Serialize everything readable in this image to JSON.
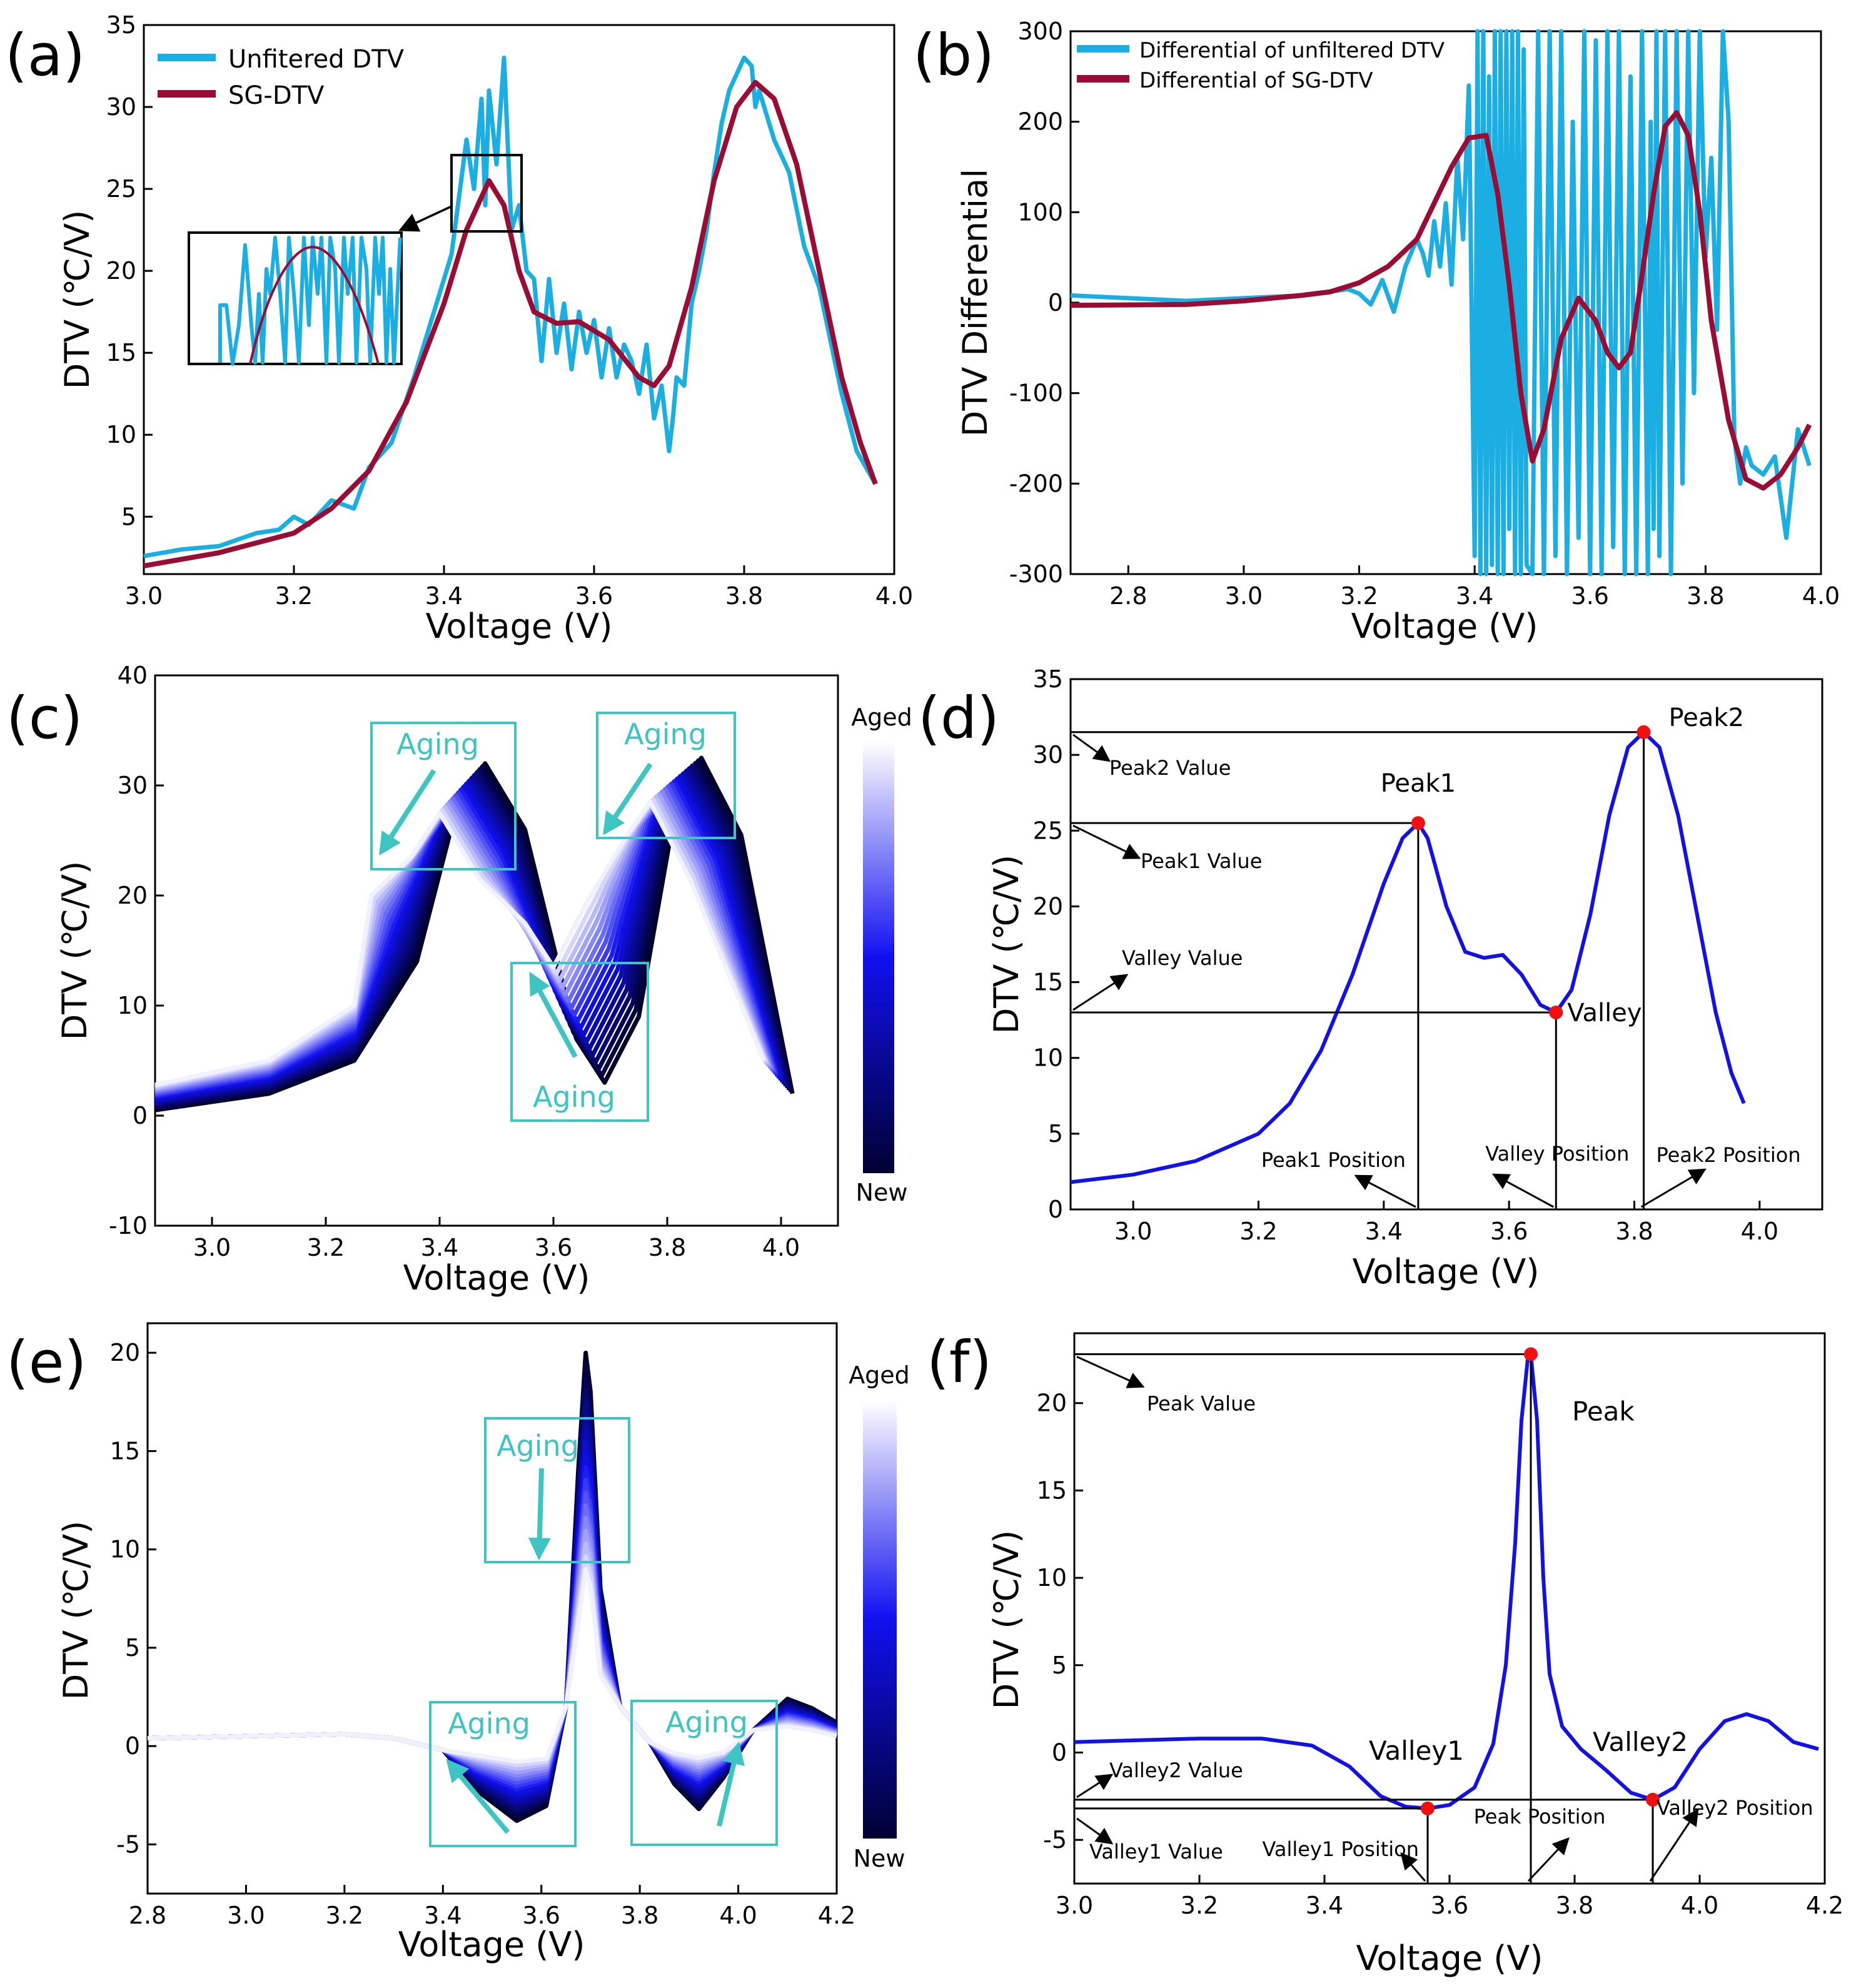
{
  "colors": {
    "unfiltered": "#1aaee3",
    "sg": "#9a0c34",
    "blue_curve": "#1212e6",
    "marker": "#f01010",
    "aging": "#3fc4c4",
    "axis": "#000000"
  },
  "chart_data": [
    {
      "id": "a",
      "panel_label": "(a)",
      "type": "line",
      "xlabel": "Voltage (V)",
      "ylabel": "DTV (℃/V)",
      "xlim": [
        3.0,
        4.0
      ],
      "ylim": [
        1.5,
        35
      ],
      "xticks": [
        3.0,
        3.2,
        3.4,
        3.6,
        3.8,
        4.0
      ],
      "xtick_labels": [
        "3.0",
        "3.2",
        "3.4",
        "3.6",
        "3.8",
        "4.0"
      ],
      "yticks": [
        5,
        10,
        15,
        20,
        25,
        30,
        35
      ],
      "ytick_labels": [
        "5",
        "10",
        "15",
        "20",
        "25",
        "30",
        "35"
      ],
      "legend": [
        "Unfitered DTV",
        "SG-DTV"
      ],
      "legend_position": "top-left",
      "series": [
        {
          "name": "SG-DTV",
          "x": [
            3.0,
            3.1,
            3.2,
            3.25,
            3.3,
            3.35,
            3.4,
            3.43,
            3.46,
            3.48,
            3.5,
            3.52,
            3.55,
            3.58,
            3.62,
            3.66,
            3.68,
            3.7,
            3.73,
            3.76,
            3.79,
            3.815,
            3.84,
            3.87,
            3.9,
            3.93,
            3.955,
            3.975
          ],
          "y": [
            2.0,
            2.8,
            4.0,
            5.5,
            7.8,
            12.0,
            18.0,
            22.5,
            25.5,
            24.0,
            20.0,
            17.5,
            16.8,
            16.9,
            15.8,
            13.5,
            13.0,
            14.2,
            19.0,
            25.5,
            30.0,
            31.5,
            30.5,
            26.5,
            20.0,
            13.5,
            9.5,
            7.0
          ]
        },
        {
          "name": "Unfitered DTV",
          "x": [
            3.0,
            3.05,
            3.1,
            3.15,
            3.18,
            3.2,
            3.22,
            3.25,
            3.28,
            3.3,
            3.33,
            3.36,
            3.39,
            3.41,
            3.42,
            3.43,
            3.44,
            3.45,
            3.455,
            3.46,
            3.47,
            3.48,
            3.49,
            3.5,
            3.51,
            3.52,
            3.53,
            3.54,
            3.55,
            3.56,
            3.57,
            3.58,
            3.59,
            3.6,
            3.61,
            3.62,
            3.63,
            3.64,
            3.65,
            3.66,
            3.67,
            3.68,
            3.69,
            3.7,
            3.705,
            3.71,
            3.72,
            3.73,
            3.74,
            3.75,
            3.76,
            3.77,
            3.78,
            3.79,
            3.8,
            3.81,
            3.815,
            3.82,
            3.83,
            3.84,
            3.86,
            3.88,
            3.9,
            3.93,
            3.95,
            3.975
          ],
          "y": [
            2.6,
            3.0,
            3.2,
            4.0,
            4.2,
            5.0,
            4.5,
            6.0,
            5.5,
            8.0,
            9.5,
            13.5,
            18.0,
            21.0,
            24.5,
            28.0,
            25.0,
            30.5,
            24.0,
            31.0,
            26.5,
            33.0,
            22.5,
            24.0,
            20.0,
            19.5,
            14.5,
            19.5,
            15.0,
            18.0,
            14.0,
            17.5,
            15.0,
            17.0,
            13.5,
            16.5,
            13.5,
            15.5,
            14.5,
            12.5,
            15.5,
            11.0,
            13.0,
            9.0,
            11.0,
            13.5,
            13.0,
            18.0,
            20.0,
            22.5,
            26.0,
            29.0,
            31.0,
            32.0,
            33.0,
            32.5,
            30.0,
            31.0,
            29.5,
            28.0,
            26.0,
            21.5,
            19.0,
            12.5,
            9.0,
            7.0
          ]
        }
      ]
    },
    {
      "id": "b",
      "panel_label": "(b)",
      "type": "line",
      "xlabel": "Voltage (V)",
      "ylabel": "DTV Differential",
      "xlim": [
        2.7,
        4.0
      ],
      "ylim": [
        -300,
        300
      ],
      "xticks": [
        2.8,
        3.0,
        3.2,
        3.4,
        3.6,
        3.8,
        4.0
      ],
      "xtick_labels": [
        "2.8",
        "3.0",
        "3.2",
        "3.4",
        "3.6",
        "3.8",
        "4.0"
      ],
      "yticks": [
        -300,
        -200,
        -100,
        0,
        100,
        200,
        300
      ],
      "ytick_labels": [
        "-300",
        "-200",
        "-100",
        "0",
        "100",
        "200",
        "300"
      ],
      "legend": [
        "Differential of unfiltered DTV",
        "Differential of SG-DTV"
      ],
      "legend_position": "top-left",
      "series": [
        {
          "name": "Differential of SG-DTV",
          "x": [
            2.7,
            2.9,
            3.0,
            3.1,
            3.15,
            3.2,
            3.25,
            3.3,
            3.33,
            3.36,
            3.39,
            3.42,
            3.44,
            3.46,
            3.48,
            3.5,
            3.52,
            3.55,
            3.58,
            3.61,
            3.63,
            3.65,
            3.67,
            3.69,
            3.71,
            3.73,
            3.75,
            3.77,
            3.79,
            3.81,
            3.84,
            3.87,
            3.9,
            3.93,
            3.96,
            3.98
          ],
          "y": [
            -3,
            -2,
            2,
            8,
            12,
            22,
            40,
            70,
            110,
            150,
            182,
            185,
            120,
            20,
            -100,
            -175,
            -140,
            -40,
            5,
            -20,
            -55,
            -72,
            -55,
            30,
            120,
            195,
            210,
            185,
            100,
            -20,
            -130,
            -195,
            -205,
            -190,
            -160,
            -135
          ]
        },
        {
          "name": "Differential of unfiltered DTV",
          "x": [
            2.7,
            2.8,
            2.9,
            3.0,
            3.1,
            3.15,
            3.18,
            3.2,
            3.22,
            3.24,
            3.26,
            3.28,
            3.3,
            3.31,
            3.32,
            3.33,
            3.34,
            3.35,
            3.36,
            3.37,
            3.38,
            3.39,
            3.4,
            3.405,
            3.41,
            3.415,
            3.42,
            3.425,
            3.43,
            3.435,
            3.44,
            3.445,
            3.45,
            3.455,
            3.46,
            3.465,
            3.47,
            3.475,
            3.48,
            3.485,
            3.49,
            3.5,
            3.51,
            3.52,
            3.53,
            3.54,
            3.55,
            3.56,
            3.57,
            3.58,
            3.59,
            3.6,
            3.61,
            3.62,
            3.63,
            3.64,
            3.65,
            3.66,
            3.67,
            3.68,
            3.69,
            3.7,
            3.705,
            3.71,
            3.715,
            3.72,
            3.73,
            3.74,
            3.75,
            3.76,
            3.77,
            3.78,
            3.79,
            3.8,
            3.81,
            3.82,
            3.83,
            3.84,
            3.85,
            3.86,
            3.87,
            3.88,
            3.9,
            3.92,
            3.94,
            3.96,
            3.98
          ],
          "y": [
            8,
            5,
            2,
            5,
            8,
            12,
            15,
            10,
            -2,
            25,
            -10,
            40,
            70,
            55,
            30,
            90,
            40,
            110,
            20,
            160,
            70,
            240,
            -280,
            300,
            -300,
            300,
            -300,
            250,
            -290,
            300,
            -300,
            300,
            -300,
            300,
            -250,
            300,
            -300,
            300,
            -300,
            280,
            -290,
            -300,
            300,
            -300,
            300,
            -280,
            300,
            -300,
            200,
            -260,
            300,
            -300,
            290,
            -300,
            300,
            -270,
            300,
            -300,
            250,
            -300,
            300,
            -300,
            200,
            -250,
            300,
            -280,
            300,
            -300,
            300,
            -200,
            300,
            -100,
            300,
            50,
            160,
            -30,
            300,
            200,
            -150,
            -200,
            -160,
            -180,
            -190,
            -170,
            -260,
            -140,
            -180
          ]
        }
      ]
    },
    {
      "id": "c",
      "panel_label": "(c)",
      "type": "line",
      "xlabel": "Voltage (V)",
      "ylabel": "DTV (℃/V)",
      "xlim": [
        2.9,
        4.1
      ],
      "ylim": [
        -10,
        40
      ],
      "xticks": [
        3.0,
        3.2,
        3.4,
        3.6,
        3.8,
        4.0
      ],
      "xtick_labels": [
        "3.0",
        "3.2",
        "3.4",
        "3.6",
        "3.8",
        "4.0"
      ],
      "yticks": [
        -10,
        0,
        10,
        20,
        30,
        40
      ],
      "ytick_labels": [
        "-10",
        "0",
        "10",
        "20",
        "30",
        "40"
      ],
      "colorbar": {
        "top_label": "Aged",
        "bottom_label": "New"
      },
      "annotations": [
        "Aging",
        "Aging",
        "Aging"
      ],
      "curve_family": {
        "count": 18,
        "new": {
          "peak1_x": 3.48,
          "peak1_y": 32,
          "valley_x": 3.69,
          "valley_y": 3,
          "peak2_x": 3.86,
          "peak2_y": 32.5,
          "end_x": 4.02,
          "end_y": 2
        },
        "aged": {
          "peak1_x": 3.4,
          "peak1_y": 27.5,
          "valley_x": 3.6,
          "valley_y": 13.5,
          "peak2_x": 3.77,
          "peak2_y": 28.5,
          "end_x": 3.97,
          "end_y": 5
        }
      }
    },
    {
      "id": "d",
      "panel_label": "(d)",
      "type": "line",
      "xlabel": "Voltage (V)",
      "ylabel": "DTV (℃/V)",
      "xlim": [
        2.9,
        4.1
      ],
      "ylim": [
        0,
        35
      ],
      "xticks": [
        3.0,
        3.2,
        3.4,
        3.6,
        3.8,
        4.0
      ],
      "xtick_labels": [
        "3.0",
        "3.2",
        "3.4",
        "3.6",
        "3.8",
        "4.0"
      ],
      "yticks": [
        0,
        5,
        10,
        15,
        20,
        25,
        30,
        35
      ],
      "ytick_labels": [
        "0",
        "5",
        "10",
        "15",
        "20",
        "25",
        "30",
        "35"
      ],
      "series": [
        {
          "name": "DTV",
          "x": [
            2.9,
            3.0,
            3.1,
            3.2,
            3.25,
            3.3,
            3.35,
            3.4,
            3.43,
            3.455,
            3.47,
            3.5,
            3.53,
            3.56,
            3.59,
            3.62,
            3.65,
            3.675,
            3.7,
            3.73,
            3.76,
            3.79,
            3.815,
            3.84,
            3.87,
            3.9,
            3.93,
            3.955,
            3.975
          ],
          "y": [
            1.8,
            2.3,
            3.2,
            5.0,
            7.0,
            10.5,
            15.5,
            21.5,
            24.5,
            25.5,
            24.5,
            20.0,
            17.0,
            16.6,
            16.8,
            15.5,
            13.5,
            13.0,
            14.5,
            19.5,
            26.0,
            30.5,
            31.5,
            30.5,
            26.0,
            19.5,
            13.0,
            9.0,
            7.0
          ]
        }
      ],
      "features": [
        {
          "name": "Peak1",
          "x": 3.455,
          "y": 25.5,
          "value_label": "Peak1 Value",
          "position_label": "Peak1 Position"
        },
        {
          "name": "Valley",
          "x": 3.675,
          "y": 13.0,
          "value_label": "Valley Value",
          "position_label": "Valley Position"
        },
        {
          "name": "Peak2",
          "x": 3.815,
          "y": 31.5,
          "value_label": "Peak2 Value",
          "position_label": "Peak2 Position"
        }
      ]
    },
    {
      "id": "e",
      "panel_label": "(e)",
      "type": "line",
      "xlabel": "Voltage (V)",
      "ylabel": "DTV (℃/V)",
      "xlim": [
        2.8,
        4.2
      ],
      "ylim": [
        -7.5,
        21.5
      ],
      "xticks": [
        2.8,
        3.0,
        3.2,
        3.4,
        3.6,
        3.8,
        4.0,
        4.2
      ],
      "xtick_labels": [
        "2.8",
        "3.0",
        "3.2",
        "3.4",
        "3.6",
        "3.8",
        "4.0",
        "4.2"
      ],
      "yticks": [
        -5,
        0,
        5,
        10,
        15,
        20
      ],
      "ytick_labels": [
        "-5",
        "0",
        "5",
        "10",
        "15",
        "20"
      ],
      "colorbar": {
        "top_label": "Aged",
        "bottom_label": "New"
      },
      "annotations": [
        "Aging",
        "Aging",
        "Aging"
      ],
      "curve_family": {
        "count": 18,
        "new": {
          "valley1_y": -3.8,
          "peak_y": 20.0,
          "valley2_y": -3.2,
          "bump_y": 2.4
        },
        "aged": {
          "valley1_y": -0.8,
          "peak_y": 9.0,
          "valley2_y": -0.6,
          "bump_y": 1.0
        }
      }
    },
    {
      "id": "f",
      "panel_label": "(f)",
      "type": "line",
      "xlabel": "Voltage (V)",
      "ylabel": "DTV (℃/V)",
      "xlim": [
        3.0,
        4.2
      ],
      "ylim": [
        -7.5,
        24
      ],
      "xticks": [
        3.0,
        3.2,
        3.4,
        3.6,
        3.8,
        4.0,
        4.2
      ],
      "xtick_labels": [
        "3.0",
        "3.2",
        "3.4",
        "3.6",
        "3.8",
        "4.0",
        "4.2"
      ],
      "yticks": [
        -5,
        0,
        5,
        10,
        15,
        20
      ],
      "ytick_labels": [
        "-5",
        "0",
        "5",
        "10",
        "15",
        "20"
      ],
      "series": [
        {
          "name": "DTV",
          "x": [
            3.0,
            3.1,
            3.2,
            3.3,
            3.38,
            3.44,
            3.49,
            3.53,
            3.565,
            3.6,
            3.64,
            3.67,
            3.69,
            3.705,
            3.715,
            3.725,
            3.73,
            3.74,
            3.75,
            3.76,
            3.78,
            3.81,
            3.85,
            3.89,
            3.925,
            3.96,
            4.0,
            4.04,
            4.075,
            4.11,
            4.15,
            4.19
          ],
          "y": [
            0.6,
            0.7,
            0.8,
            0.8,
            0.4,
            -0.8,
            -2.5,
            -3.1,
            -3.2,
            -3.0,
            -2.0,
            0.5,
            5.0,
            12.0,
            19.0,
            22.5,
            22.8,
            19.0,
            10.0,
            4.5,
            1.5,
            0.2,
            -1.0,
            -2.3,
            -2.7,
            -2.0,
            0.2,
            1.8,
            2.2,
            1.8,
            0.6,
            0.2
          ]
        }
      ],
      "features": [
        {
          "name": "Peak",
          "x": 3.73,
          "y": 22.8,
          "value_label": "Peak Value",
          "position_label": "Peak Position"
        },
        {
          "name": "Valley1",
          "x": 3.565,
          "y": -3.2,
          "value_label": "Valley1 Value",
          "position_label": "Valley1 Position"
        },
        {
          "name": "Valley2",
          "x": 3.925,
          "y": -2.7,
          "value_label": "Valley2 Value",
          "position_label": "Valley2 Position"
        }
      ]
    }
  ]
}
